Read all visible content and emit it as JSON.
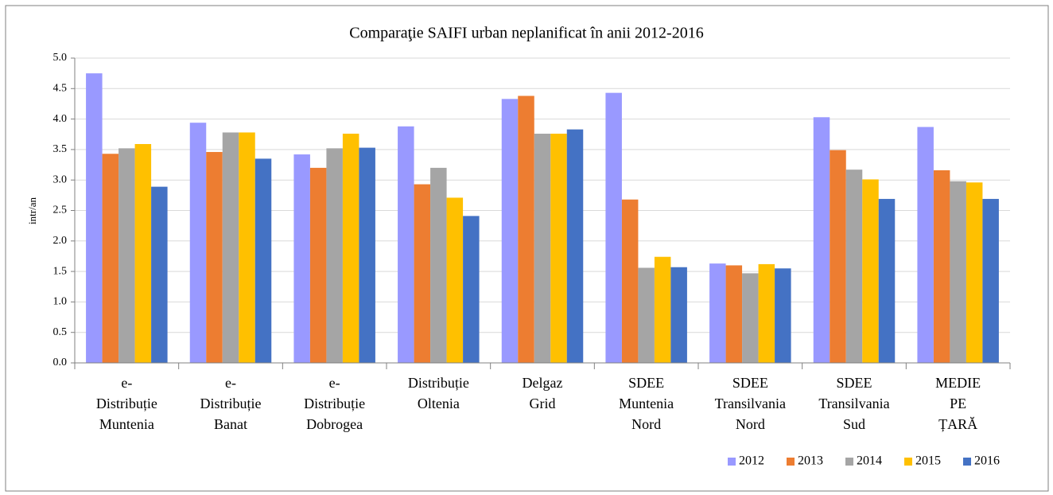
{
  "chart_data": {
    "type": "bar",
    "title": "Comparaţie  SAIFI urban neplanificat în anii 2012-2016",
    "ylabel": "intr/an",
    "categories": [
      "e-\nDistribuție\nMuntenia",
      "e-\nDistribuție\nBanat",
      "e-\nDistribuție\nDobrogea",
      "Distribuție\nOltenia",
      "Delgaz\nGrid",
      "SDEE\nMuntenia\nNord",
      "SDEE\nTransilvania\nNord",
      "SDEE\nTransilvania\nSud",
      "MEDIE\nPE\nȚARĂ"
    ],
    "series": [
      {
        "name": "2012",
        "color": "#9999ff",
        "values": [
          4.75,
          3.94,
          3.42,
          3.88,
          4.33,
          4.43,
          1.63,
          4.03,
          3.87
        ]
      },
      {
        "name": "2013",
        "color": "#ed7d31",
        "values": [
          3.43,
          3.46,
          3.2,
          2.93,
          4.38,
          2.68,
          1.6,
          3.49,
          3.16
        ]
      },
      {
        "name": "2014",
        "color": "#a5a5a5",
        "values": [
          3.52,
          3.78,
          3.52,
          3.2,
          3.76,
          1.56,
          1.47,
          3.17,
          2.98
        ]
      },
      {
        "name": "2015",
        "color": "#ffc000",
        "values": [
          3.59,
          3.78,
          3.76,
          2.71,
          3.76,
          1.74,
          1.62,
          3.01,
          2.96
        ]
      },
      {
        "name": "2016",
        "color": "#4472c4",
        "values": [
          2.89,
          3.35,
          3.53,
          2.41,
          3.83,
          1.57,
          1.55,
          2.69,
          2.69
        ]
      }
    ],
    "ylim": [
      0,
      5
    ],
    "yticks": [
      {
        "value": 0,
        "label": "0.0"
      },
      {
        "value": 0.5,
        "label": "0.5"
      },
      {
        "value": 1,
        "label": "1.0"
      },
      {
        "value": 1.5,
        "label": "1.5"
      },
      {
        "value": 2,
        "label": "2.0"
      },
      {
        "value": 2.5,
        "label": "2.5"
      },
      {
        "value": 3,
        "label": "3.0"
      },
      {
        "value": 3.5,
        "label": "3.5"
      },
      {
        "value": 4,
        "label": "4.0"
      },
      {
        "value": 4.5,
        "label": "4.5"
      },
      {
        "value": 5,
        "label": "5.0"
      }
    ],
    "grid": true,
    "legend": "bottom-right"
  }
}
